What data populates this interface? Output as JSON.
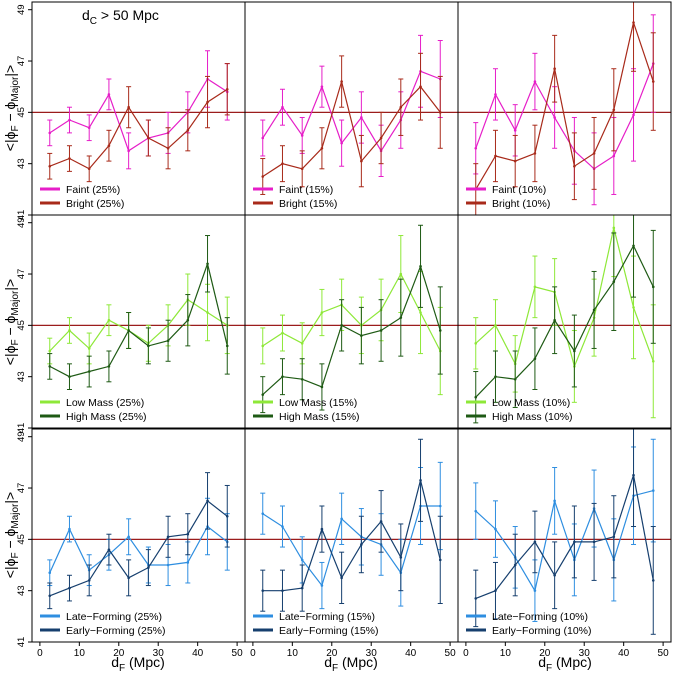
{
  "figure": {
    "annotation": {
      "main": "d",
      "sub": "C",
      "rest": " > 50 Mpc"
    },
    "xlabel": {
      "main": "d",
      "sub": "F",
      "rest": " (Mpc)"
    },
    "ylabel": {
      "pre": "<|ϕ",
      "sub1": "F",
      "mid": " − ϕ",
      "sub2": "Major",
      "post": "|>"
    },
    "reference_line": 45,
    "colors": {
      "reference": "#9b1c1c",
      "frame": "#000000"
    }
  },
  "chart_data": [
    {
      "type": "line",
      "row": 0,
      "col": 0,
      "x": [
        2.5,
        7.5,
        12.5,
        17.5,
        22.5,
        27.5,
        32.5,
        37.5,
        42.5,
        47.5
      ],
      "xlim": [
        -2,
        52
      ],
      "ylim": [
        41,
        49.3
      ],
      "xticks": [
        0,
        10,
        20,
        30,
        40,
        50
      ],
      "yticks": [
        41,
        43,
        45,
        47,
        49
      ],
      "series": [
        {
          "name": "Faint (25%)",
          "color": "#e61ec8",
          "values": [
            44.2,
            44.7,
            44.4,
            45.7,
            43.5,
            44.0,
            44.2,
            45.0,
            46.3,
            45.8
          ],
          "err": [
            0.5,
            0.5,
            0.5,
            0.6,
            0.7,
            0.7,
            0.8,
            0.8,
            1.1,
            1.1
          ]
        },
        {
          "name": "Bright (25%)",
          "color": "#a82a1a",
          "values": [
            42.9,
            43.2,
            42.8,
            43.7,
            45.2,
            44.0,
            43.6,
            44.3,
            45.4,
            45.9
          ],
          "err": [
            0.5,
            0.5,
            0.5,
            0.6,
            0.8,
            0.7,
            0.8,
            0.8,
            1.0,
            1.0
          ]
        }
      ]
    },
    {
      "type": "line",
      "row": 0,
      "col": 1,
      "x": [
        2.5,
        7.5,
        12.5,
        17.5,
        22.5,
        27.5,
        32.5,
        37.5,
        42.5,
        47.5
      ],
      "xlim": [
        -2,
        52
      ],
      "ylim": [
        41,
        49.3
      ],
      "xticks": [
        0,
        10,
        20,
        30,
        40,
        50
      ],
      "yticks": [
        41,
        43,
        45,
        47,
        49
      ],
      "series": [
        {
          "name": "Faint (15%)",
          "color": "#e61ec8",
          "values": [
            44.0,
            45.2,
            44.1,
            46.0,
            43.8,
            44.8,
            43.5,
            44.7,
            46.6,
            46.3
          ],
          "err": [
            0.7,
            0.7,
            0.7,
            0.8,
            0.9,
            1.0,
            1.0,
            1.1,
            1.4,
            1.5
          ]
        },
        {
          "name": "Bright (15%)",
          "color": "#a82a1a",
          "values": [
            42.5,
            43.0,
            42.8,
            43.6,
            46.2,
            43.1,
            44.0,
            45.2,
            46.0,
            45.0
          ],
          "err": [
            0.7,
            0.7,
            0.7,
            0.8,
            1.0,
            1.0,
            1.0,
            1.1,
            1.3,
            1.4
          ]
        }
      ]
    },
    {
      "type": "line",
      "row": 0,
      "col": 2,
      "x": [
        2.5,
        7.5,
        12.5,
        17.5,
        22.5,
        27.5,
        32.5,
        37.5,
        42.5,
        47.5
      ],
      "xlim": [
        -2,
        52
      ],
      "ylim": [
        41,
        49.3
      ],
      "xticks": [
        0,
        10,
        20,
        30,
        40,
        50
      ],
      "yticks": [
        41,
        43,
        45,
        47,
        49
      ],
      "series": [
        {
          "name": "Faint (10%)",
          "color": "#e61ec8",
          "values": [
            43.6,
            45.7,
            44.3,
            46.2,
            44.8,
            43.5,
            42.8,
            43.3,
            44.9,
            46.9
          ],
          "err": [
            1.0,
            1.0,
            1.0,
            1.1,
            1.2,
            1.3,
            1.4,
            1.5,
            1.8,
            1.9
          ]
        },
        {
          "name": "Bright (10%)",
          "color": "#a82a1a",
          "values": [
            42.0,
            43.3,
            43.1,
            43.4,
            46.7,
            42.9,
            43.4,
            45.1,
            48.5,
            46.2
          ],
          "err": [
            1.0,
            1.0,
            1.0,
            1.1,
            1.3,
            1.3,
            1.4,
            1.6,
            1.9,
            1.9
          ]
        }
      ]
    },
    {
      "type": "line",
      "row": 1,
      "col": 0,
      "x": [
        2.5,
        7.5,
        12.5,
        17.5,
        22.5,
        27.5,
        32.5,
        37.5,
        42.5,
        47.5
      ],
      "xlim": [
        -2,
        52
      ],
      "ylim": [
        41,
        49.3
      ],
      "xticks": [
        0,
        10,
        20,
        30,
        40,
        50
      ],
      "yticks": [
        41,
        43,
        45,
        47,
        49
      ],
      "series": [
        {
          "name": "Low Mass (25%)",
          "color": "#8ee838",
          "values": [
            44.0,
            44.8,
            44.1,
            45.2,
            44.8,
            44.3,
            45.0,
            46.0,
            45.5,
            45.0
          ],
          "err": [
            0.5,
            0.5,
            0.6,
            0.6,
            0.7,
            0.7,
            0.8,
            1.0,
            1.1,
            1.1
          ]
        },
        {
          "name": "High Mass (25%)",
          "color": "#1e5a14",
          "values": [
            43.4,
            43.0,
            43.2,
            43.4,
            44.8,
            44.2,
            44.4,
            45.2,
            47.4,
            44.2
          ],
          "err": [
            0.5,
            0.5,
            0.6,
            0.6,
            0.7,
            0.7,
            0.8,
            1.0,
            1.1,
            1.1
          ]
        }
      ]
    },
    {
      "type": "line",
      "row": 1,
      "col": 1,
      "x": [
        2.5,
        7.5,
        12.5,
        17.5,
        22.5,
        27.5,
        32.5,
        37.5,
        42.5,
        47.5
      ],
      "xlim": [
        -2,
        52
      ],
      "ylim": [
        41,
        49.3
      ],
      "xticks": [
        0,
        10,
        20,
        30,
        40,
        50
      ],
      "yticks": [
        41,
        43,
        45,
        47,
        49
      ],
      "series": [
        {
          "name": "Low Mass (15%)",
          "color": "#8ee838",
          "values": [
            44.2,
            44.7,
            44.3,
            45.5,
            45.8,
            45.0,
            45.6,
            47.0,
            45.5,
            44.0
          ],
          "err": [
            0.7,
            0.7,
            0.8,
            0.9,
            1.0,
            1.1,
            1.2,
            1.5,
            1.6,
            1.7
          ]
        },
        {
          "name": "High Mass (15%)",
          "color": "#1e5a14",
          "values": [
            42.3,
            43.0,
            42.9,
            42.6,
            45.0,
            44.6,
            44.8,
            45.3,
            47.3,
            44.8
          ],
          "err": [
            0.7,
            0.7,
            0.8,
            0.9,
            1.0,
            1.1,
            1.2,
            1.5,
            1.6,
            1.7
          ]
        }
      ]
    },
    {
      "type": "line",
      "row": 1,
      "col": 2,
      "x": [
        2.5,
        7.5,
        12.5,
        17.5,
        22.5,
        27.5,
        32.5,
        37.5,
        42.5,
        47.5
      ],
      "xlim": [
        -2,
        52
      ],
      "ylim": [
        41,
        49.3
      ],
      "xticks": [
        0,
        10,
        20,
        30,
        40,
        50
      ],
      "yticks": [
        41,
        43,
        45,
        47,
        49
      ],
      "series": [
        {
          "name": "Low Mass (10%)",
          "color": "#8ee838",
          "values": [
            44.3,
            45.0,
            43.5,
            46.5,
            46.3,
            43.4,
            45.3,
            48.8,
            45.7,
            43.6
          ],
          "err": [
            1.0,
            1.0,
            1.1,
            1.2,
            1.3,
            1.4,
            1.5,
            1.9,
            2.0,
            2.2
          ]
        },
        {
          "name": "High Mass (10%)",
          "color": "#1e5a14",
          "values": [
            42.2,
            43.0,
            42.9,
            43.7,
            45.2,
            44.0,
            45.6,
            46.7,
            48.1,
            46.5
          ],
          "err": [
            1.0,
            1.0,
            1.1,
            1.2,
            1.3,
            1.4,
            1.5,
            1.9,
            2.0,
            2.2
          ]
        }
      ]
    },
    {
      "type": "line",
      "row": 2,
      "col": 0,
      "x": [
        2.5,
        7.5,
        12.5,
        17.5,
        22.5,
        27.5,
        32.5,
        37.5,
        42.5,
        47.5
      ],
      "xlim": [
        -2,
        52
      ],
      "ylim": [
        41,
        49.3
      ],
      "xticks": [
        0,
        10,
        20,
        30,
        40,
        50
      ],
      "yticks": [
        41,
        43,
        45,
        47,
        49
      ],
      "series": [
        {
          "name": "Late−Forming (25%)",
          "color": "#2e8ee0",
          "values": [
            43.7,
            45.4,
            43.8,
            44.4,
            45.1,
            44.0,
            44.0,
            44.1,
            45.5,
            44.9
          ],
          "err": [
            0.5,
            0.5,
            0.6,
            0.6,
            0.7,
            0.7,
            0.8,
            0.8,
            1.1,
            1.1
          ]
        },
        {
          "name": "Early−Forming (25%)",
          "color": "#163f6e",
          "values": [
            42.8,
            43.1,
            43.4,
            44.6,
            43.5,
            43.9,
            45.1,
            45.2,
            46.5,
            45.9
          ],
          "err": [
            0.5,
            0.5,
            0.6,
            0.6,
            0.7,
            0.7,
            0.8,
            0.8,
            1.1,
            1.2
          ]
        }
      ]
    },
    {
      "type": "line",
      "row": 2,
      "col": 1,
      "x": [
        2.5,
        7.5,
        12.5,
        17.5,
        22.5,
        27.5,
        32.5,
        37.5,
        42.5,
        47.5
      ],
      "xlim": [
        -2,
        52
      ],
      "ylim": [
        41,
        49.3
      ],
      "xticks": [
        0,
        10,
        20,
        30,
        40,
        50
      ],
      "yticks": [
        41,
        43,
        45,
        47,
        49
      ],
      "series": [
        {
          "name": "Late−Forming (15%)",
          "color": "#2e8ee0",
          "values": [
            46.0,
            45.5,
            44.2,
            43.2,
            45.8,
            45.1,
            44.8,
            43.7,
            46.3,
            46.3
          ],
          "err": [
            0.8,
            0.8,
            0.9,
            0.9,
            1.0,
            1.1,
            1.2,
            1.3,
            1.5,
            1.7
          ]
        },
        {
          "name": "Early−Forming (15%)",
          "color": "#163f6e",
          "values": [
            43.0,
            43.0,
            43.1,
            45.4,
            43.5,
            44.8,
            45.7,
            44.3,
            47.3,
            44.2
          ],
          "err": [
            0.8,
            0.8,
            0.9,
            0.9,
            1.0,
            1.1,
            1.2,
            1.3,
            1.6,
            1.7
          ]
        }
      ]
    },
    {
      "type": "line",
      "row": 2,
      "col": 2,
      "x": [
        2.5,
        7.5,
        12.5,
        17.5,
        22.5,
        27.5,
        32.5,
        37.5,
        42.5,
        47.5
      ],
      "xlim": [
        -2,
        52
      ],
      "ylim": [
        41,
        49.3
      ],
      "xticks": [
        0,
        10,
        20,
        30,
        40,
        50
      ],
      "yticks": [
        41,
        43,
        45,
        47,
        49
      ],
      "series": [
        {
          "name": "Late−Forming (10%)",
          "color": "#2e8ee0",
          "values": [
            46.1,
            45.4,
            44.3,
            43.0,
            46.5,
            44.2,
            46.2,
            44.2,
            46.7,
            46.9
          ],
          "err": [
            1.1,
            1.1,
            1.2,
            1.2,
            1.3,
            1.4,
            1.5,
            1.6,
            1.9,
            2.0
          ]
        },
        {
          "name": "Early−Forming (10%)",
          "color": "#163f6e",
          "values": [
            42.7,
            43.0,
            44.0,
            44.9,
            43.6,
            44.9,
            44.9,
            45.1,
            47.5,
            43.4
          ],
          "err": [
            1.1,
            1.1,
            1.2,
            1.2,
            1.3,
            1.4,
            1.5,
            1.6,
            2.0,
            2.1
          ]
        }
      ]
    }
  ]
}
